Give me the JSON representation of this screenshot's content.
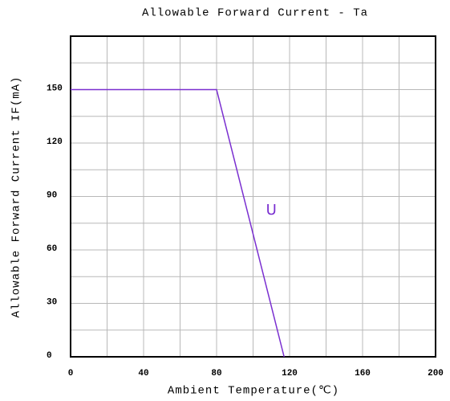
{
  "chart_data": {
    "type": "line",
    "title": "Allowable Forward Current - Ta",
    "x_label": "Ambient Temperature(℃)",
    "y_label": "Allowable Forward Current IF(mA)",
    "x": [
      0,
      80,
      117
    ],
    "series": [
      {
        "name": "U",
        "color": "#7a2fd0",
        "values": [
          150,
          150,
          0
        ]
      }
    ],
    "annotations": [
      {
        "text": "U",
        "x": 110,
        "y": 82
      }
    ],
    "xlim": [
      0,
      200
    ],
    "xticks": [
      0,
      40,
      80,
      120,
      160,
      200
    ],
    "x_minor_ticks": [
      20,
      60,
      100,
      140,
      180
    ],
    "ylim": [
      0,
      180
    ],
    "yticks": [
      0,
      30,
      60,
      90,
      120,
      150
    ],
    "y_minor_ticks": [
      15,
      45,
      75,
      105,
      135,
      165
    ],
    "grid": true
  }
}
